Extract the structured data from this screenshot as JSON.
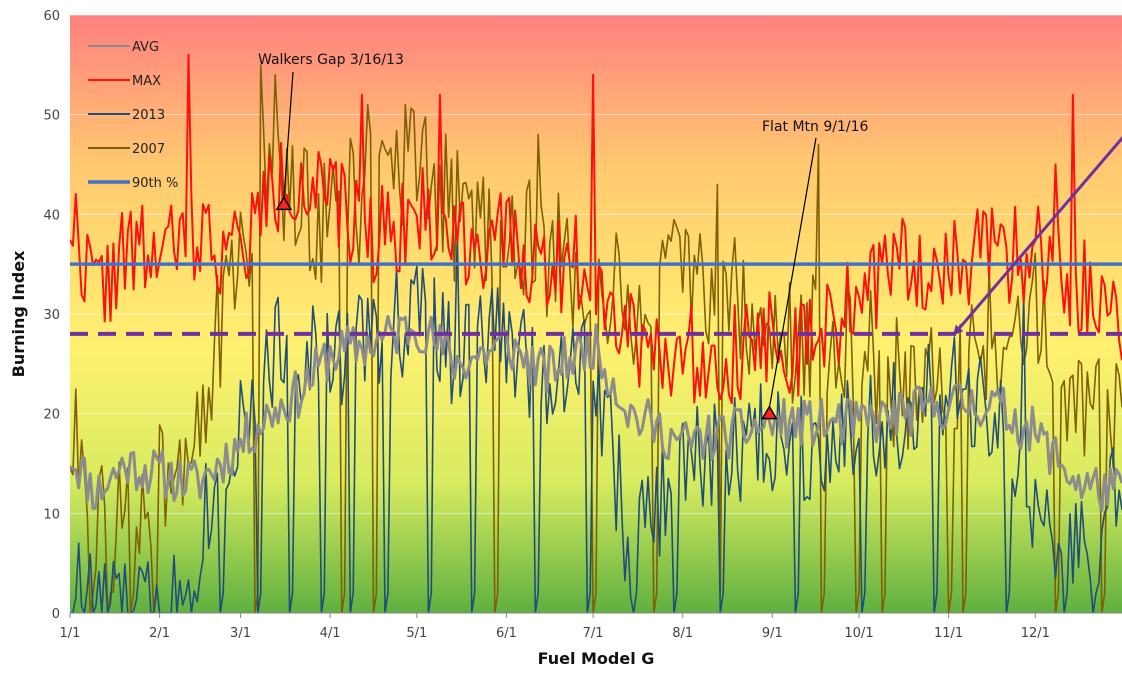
{
  "chart_data": {
    "type": "line",
    "title": "",
    "xlabel": "Fuel Model G",
    "ylabel": "Burning Index",
    "ylim": [
      0,
      60
    ],
    "y_ticks": [
      0,
      10,
      20,
      30,
      40,
      50,
      60
    ],
    "x_tick_labels": [
      "1/1",
      "2/1",
      "3/1",
      "4/1",
      "5/1",
      "6/1",
      "7/1",
      "8/1",
      "9/1",
      "10/1",
      "11/1",
      "12/1"
    ],
    "x_tick_days": [
      1,
      32,
      60,
      91,
      121,
      152,
      182,
      213,
      244,
      274,
      305,
      335
    ],
    "x_range_days": [
      1,
      365
    ],
    "grid": {
      "horizontal": true,
      "vertical": false
    },
    "background_gradient": [
      "#ff8080",
      "#ffc870",
      "#fff070",
      "#d8ec60",
      "#5fb040"
    ],
    "legend": {
      "placement": "top-left",
      "entries": [
        {
          "label": "AVG",
          "color": "#8c8c8c"
        },
        {
          "label": "MAX",
          "color": "#ff1010"
        },
        {
          "label": "2013",
          "color": "#1f4e79"
        },
        {
          "label": "2007",
          "color": "#806000"
        },
        {
          "label": "90th %",
          "color": "#4472c4"
        }
      ]
    },
    "reference_lines": [
      {
        "name": "90th %",
        "value": 35,
        "color": "#4472c4",
        "style": "solid"
      },
      {
        "value": 28,
        "color": "#7030a0",
        "style": "dashed"
      }
    ],
    "annotations": [
      {
        "text": "Walkers Gap 3/16/13",
        "day": 75,
        "value": 41
      },
      {
        "text": "Flat Mtn 9/1/16",
        "day": 243,
        "value": 20
      }
    ],
    "arrow": {
      "from_day": 372,
      "from_value": 50,
      "to_day": 307,
      "to_value": 28,
      "color": "#7030a0"
    },
    "series": [
      {
        "name": "AVG",
        "color": "#8c8c8c",
        "width": 3,
        "anchors": [
          [
            1,
            16
          ],
          [
            10,
            12
          ],
          [
            20,
            15
          ],
          [
            32,
            14
          ],
          [
            45,
            13
          ],
          [
            60,
            17
          ],
          [
            70,
            20
          ],
          [
            80,
            22
          ],
          [
            91,
            26
          ],
          [
            105,
            27
          ],
          [
            121,
            29
          ],
          [
            135,
            25
          ],
          [
            152,
            27
          ],
          [
            165,
            24
          ],
          [
            182,
            27
          ],
          [
            195,
            20
          ],
          [
            213,
            17
          ],
          [
            230,
            18
          ],
          [
            244,
            19
          ],
          [
            255,
            19
          ],
          [
            274,
            19
          ],
          [
            290,
            20
          ],
          [
            305,
            21
          ],
          [
            320,
            21
          ],
          [
            335,
            18
          ],
          [
            350,
            13
          ],
          [
            365,
            12
          ]
        ],
        "noise": 2.5,
        "seed": 11
      },
      {
        "name": "MAX",
        "color": "#ff1010",
        "width": 2,
        "anchors": [
          [
            1,
            40
          ],
          [
            10,
            32
          ],
          [
            20,
            36
          ],
          [
            32,
            36
          ],
          [
            45,
            38
          ],
          [
            60,
            36
          ],
          [
            70,
            42
          ],
          [
            80,
            44
          ],
          [
            91,
            41
          ],
          [
            105,
            38
          ],
          [
            121,
            40
          ],
          [
            135,
            38
          ],
          [
            152,
            37
          ],
          [
            165,
            35
          ],
          [
            182,
            35
          ],
          [
            195,
            28
          ],
          [
            213,
            26
          ],
          [
            230,
            26
          ],
          [
            244,
            28
          ],
          [
            255,
            26
          ],
          [
            274,
            32
          ],
          [
            290,
            35
          ],
          [
            305,
            35
          ],
          [
            320,
            36
          ],
          [
            335,
            36
          ],
          [
            350,
            33
          ],
          [
            365,
            30
          ]
        ],
        "noise": 5,
        "seed": 22,
        "spikes": [
          [
            42,
            56
          ],
          [
            102,
            52
          ],
          [
            129,
            52
          ],
          [
            182,
            54
          ],
          [
            348,
            52
          ],
          [
            342,
            45
          ]
        ]
      },
      {
        "name": "2013",
        "color": "#1f4e79",
        "width": 1.6,
        "anchors": [
          [
            1,
            3
          ],
          [
            10,
            1
          ],
          [
            20,
            0
          ],
          [
            32,
            0
          ],
          [
            40,
            2
          ],
          [
            50,
            12
          ],
          [
            60,
            20
          ],
          [
            70,
            26
          ],
          [
            80,
            27
          ],
          [
            91,
            25
          ],
          [
            105,
            28
          ],
          [
            121,
            30
          ],
          [
            135,
            26
          ],
          [
            152,
            28
          ],
          [
            165,
            24
          ],
          [
            182,
            26
          ],
          [
            195,
            6
          ],
          [
            213,
            15
          ],
          [
            230,
            16
          ],
          [
            244,
            18
          ],
          [
            255,
            17
          ],
          [
            274,
            19
          ],
          [
            290,
            20
          ],
          [
            305,
            22
          ],
          [
            320,
            20
          ],
          [
            335,
            10
          ],
          [
            350,
            6
          ],
          [
            365,
            12
          ]
        ],
        "noise": 6,
        "seed": 33,
        "drops": [
          [
            53,
            0
          ],
          [
            66,
            0
          ],
          [
            77,
            0
          ],
          [
            88,
            0
          ],
          [
            98,
            0
          ],
          [
            110,
            0
          ],
          [
            125,
            0
          ],
          [
            140,
            0
          ],
          [
            162,
            0
          ],
          [
            180,
            0
          ],
          [
            196,
            0
          ],
          [
            210,
            0
          ],
          [
            226,
            0
          ],
          [
            252,
            0
          ],
          [
            275,
            0
          ],
          [
            300,
            0
          ],
          [
            325,
            0
          ],
          [
            345,
            0
          ],
          [
            355,
            0
          ]
        ],
        "spikes": [
          [
            135,
            38
          ],
          [
            331,
            32
          ]
        ]
      },
      {
        "name": "2007",
        "color": "#806000",
        "width": 1.6,
        "anchors": [
          [
            1,
            18
          ],
          [
            10,
            10
          ],
          [
            20,
            8
          ],
          [
            32,
            14
          ],
          [
            45,
            20
          ],
          [
            60,
            35
          ],
          [
            70,
            45
          ],
          [
            80,
            40
          ],
          [
            91,
            40
          ],
          [
            105,
            42
          ],
          [
            121,
            44
          ],
          [
            135,
            40
          ],
          [
            152,
            38
          ],
          [
            165,
            36
          ],
          [
            182,
            33
          ],
          [
            195,
            30
          ],
          [
            213,
            34
          ],
          [
            230,
            32
          ],
          [
            244,
            26
          ],
          [
            255,
            28
          ],
          [
            274,
            28
          ],
          [
            290,
            22
          ],
          [
            305,
            24
          ],
          [
            320,
            28
          ],
          [
            335,
            30
          ],
          [
            350,
            22
          ],
          [
            365,
            18
          ]
        ],
        "noise": 7,
        "seed": 44,
        "drops": [
          [
            8,
            0
          ],
          [
            14,
            0
          ],
          [
            22,
            0
          ],
          [
            30,
            0
          ],
          [
            65,
            0
          ],
          [
            95,
            0
          ],
          [
            106,
            0
          ],
          [
            148,
            0
          ],
          [
            182,
            0
          ],
          [
            203,
            0
          ],
          [
            225,
            0
          ],
          [
            261,
            0
          ],
          [
            273,
            0
          ],
          [
            282,
            0
          ],
          [
            305,
            0
          ],
          [
            310,
            0
          ],
          [
            342,
            0
          ],
          [
            358,
            0
          ]
        ],
        "spikes": [
          [
            67,
            55
          ],
          [
            72,
            54
          ],
          [
            104,
            51
          ],
          [
            117,
            51
          ],
          [
            163,
            48
          ],
          [
            225,
            43
          ],
          [
            260,
            47
          ]
        ]
      }
    ]
  }
}
